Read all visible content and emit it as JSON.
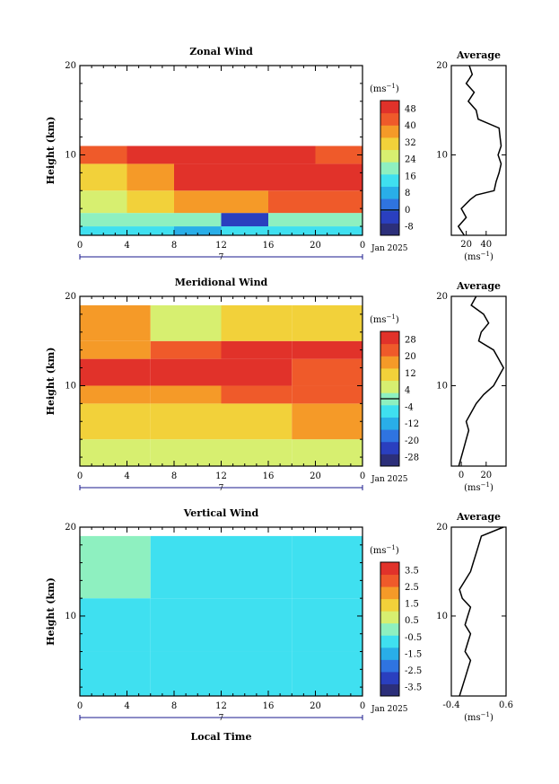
{
  "chart_data": [
    {
      "type": "heatmap",
      "title": "Zonal Wind",
      "ylabel": "Height (km)",
      "xlabel": "",
      "x_ticks": [
        "0",
        "4",
        "8",
        "12",
        "16",
        "20",
        "0"
      ],
      "y_ticks": [
        "10",
        "20"
      ],
      "xlim": [
        0,
        24
      ],
      "ylim": [
        1,
        20
      ],
      "date_marker": "7",
      "date_label": "Jan 2025",
      "colorbar": {
        "unit": "(ms",
        "unit_exp": "−1",
        "unit_close": ")",
        "ticks": [
          "48",
          "40",
          "32",
          "24",
          "16",
          "8",
          "0",
          "-8"
        ],
        "range": [
          -12,
          52
        ],
        "zero_value": 0
      },
      "average_profile": {
        "title": "Average",
        "x_ticks": [
          "20",
          "40"
        ],
        "xlim": [
          5,
          60
        ],
        "unit": "(ms",
        "unit_exp": "−1",
        "unit_close": ")",
        "heights": [
          1,
          2,
          3,
          4,
          5,
          5.5,
          6,
          7,
          8,
          9,
          10,
          11,
          12,
          13,
          14,
          15,
          16,
          17,
          18,
          19,
          20
        ],
        "values": [
          18,
          12,
          20,
          15,
          24,
          30,
          48,
          50,
          53,
          55,
          52,
          55,
          54,
          53,
          32,
          30,
          22,
          28,
          20,
          26,
          23
        ]
      },
      "field": [
        {
          "t": [
            0,
            4
          ],
          "h": [
            1,
            2
          ],
          "v": 12
        },
        {
          "t": [
            4,
            8
          ],
          "h": [
            1,
            2
          ],
          "v": 14
        },
        {
          "t": [
            8,
            12
          ],
          "h": [
            1,
            2
          ],
          "v": 10
        },
        {
          "t": [
            12,
            16
          ],
          "h": [
            1,
            2
          ],
          "v": 12
        },
        {
          "t": [
            16,
            20
          ],
          "h": [
            1,
            2
          ],
          "v": 14
        },
        {
          "t": [
            20,
            24
          ],
          "h": [
            1,
            2
          ],
          "v": 12
        },
        {
          "t": [
            0,
            4
          ],
          "h": [
            2,
            3.5
          ],
          "v": 20
        },
        {
          "t": [
            4,
            8
          ],
          "h": [
            2,
            3.5
          ],
          "v": 20
        },
        {
          "t": [
            8,
            12
          ],
          "h": [
            2,
            3.5
          ],
          "v": 18
        },
        {
          "t": [
            12,
            16
          ],
          "h": [
            2,
            3.5
          ],
          "v": -4
        },
        {
          "t": [
            16,
            20
          ],
          "h": [
            2,
            3.5
          ],
          "v": 20
        },
        {
          "t": [
            20,
            24
          ],
          "h": [
            2,
            3.5
          ],
          "v": 22
        },
        {
          "t": [
            0,
            4
          ],
          "h": [
            3.5,
            6
          ],
          "v": 26
        },
        {
          "t": [
            4,
            8
          ],
          "h": [
            3.5,
            6
          ],
          "v": 30
        },
        {
          "t": [
            8,
            12
          ],
          "h": [
            3.5,
            6
          ],
          "v": 40
        },
        {
          "t": [
            12,
            16
          ],
          "h": [
            3.5,
            6
          ],
          "v": 36
        },
        {
          "t": [
            16,
            20
          ],
          "h": [
            3.5,
            6
          ],
          "v": 44
        },
        {
          "t": [
            20,
            24
          ],
          "h": [
            3.5,
            6
          ],
          "v": 46
        },
        {
          "t": [
            0,
            4
          ],
          "h": [
            6,
            9
          ],
          "v": 34
        },
        {
          "t": [
            4,
            8
          ],
          "h": [
            6,
            9
          ],
          "v": 38
        },
        {
          "t": [
            8,
            12
          ],
          "h": [
            6,
            9
          ],
          "v": 48
        },
        {
          "t": [
            12,
            16
          ],
          "h": [
            6,
            9
          ],
          "v": 48
        },
        {
          "t": [
            16,
            20
          ],
          "h": [
            6,
            9
          ],
          "v": 50
        },
        {
          "t": [
            20,
            24
          ],
          "h": [
            6,
            9
          ],
          "v": 50
        },
        {
          "t": [
            0,
            4
          ],
          "h": [
            9,
            11
          ],
          "v": 46
        },
        {
          "t": [
            4,
            8
          ],
          "h": [
            9,
            11
          ],
          "v": 48
        },
        {
          "t": [
            8,
            12
          ],
          "h": [
            9,
            11
          ],
          "v": 50
        },
        {
          "t": [
            12,
            16
          ],
          "h": [
            9,
            11
          ],
          "v": 50
        },
        {
          "t": [
            16,
            20
          ],
          "h": [
            9,
            11
          ],
          "v": 48
        },
        {
          "t": [
            20,
            24
          ],
          "h": [
            9,
            11
          ],
          "v": 46
        }
      ]
    },
    {
      "type": "heatmap",
      "title": "Meridional Wind",
      "ylabel": "Height (km)",
      "xlabel": "",
      "x_ticks": [
        "0",
        "4",
        "8",
        "12",
        "16",
        "20",
        "0"
      ],
      "y_ticks": [
        "10",
        "20"
      ],
      "xlim": [
        0,
        24
      ],
      "ylim": [
        1,
        20
      ],
      "date_marker": "7",
      "date_label": "Jan 2025",
      "colorbar": {
        "unit": "(ms",
        "unit_exp": "−1",
        "unit_close": ")",
        "ticks": [
          "28",
          "20",
          "12",
          "4",
          "-4",
          "-12",
          "-20",
          "-28"
        ],
        "range": [
          -32,
          32
        ],
        "zero_value": 0
      },
      "average_profile": {
        "title": "Average",
        "x_ticks": [
          "0",
          "20"
        ],
        "xlim": [
          -8,
          36
        ],
        "unit": "(ms",
        "unit_exp": "−1",
        "unit_close": ")",
        "heights": [
          1,
          2,
          3,
          4,
          5,
          6,
          7,
          8,
          9,
          10,
          11,
          12,
          13,
          14,
          15,
          16,
          17,
          18,
          19,
          20
        ],
        "values": [
          -2,
          0,
          2,
          4,
          6,
          4,
          8,
          12,
          18,
          26,
          30,
          34,
          30,
          26,
          14,
          16,
          22,
          18,
          8,
          12
        ]
      },
      "field": [
        {
          "t": [
            0,
            6
          ],
          "h": [
            1,
            4
          ],
          "v": 4
        },
        {
          "t": [
            6,
            12
          ],
          "h": [
            1,
            4
          ],
          "v": 6
        },
        {
          "t": [
            12,
            18
          ],
          "h": [
            1,
            4
          ],
          "v": 8
        },
        {
          "t": [
            18,
            24
          ],
          "h": [
            1,
            4
          ],
          "v": 6
        },
        {
          "t": [
            0,
            6
          ],
          "h": [
            4,
            8
          ],
          "v": 10
        },
        {
          "t": [
            6,
            12
          ],
          "h": [
            4,
            8
          ],
          "v": 12
        },
        {
          "t": [
            12,
            18
          ],
          "h": [
            4,
            8
          ],
          "v": 14
        },
        {
          "t": [
            18,
            24
          ],
          "h": [
            4,
            8
          ],
          "v": 16
        },
        {
          "t": [
            0,
            6
          ],
          "h": [
            8,
            10
          ],
          "v": 18
        },
        {
          "t": [
            6,
            12
          ],
          "h": [
            8,
            10
          ],
          "v": 20
        },
        {
          "t": [
            12,
            18
          ],
          "h": [
            8,
            10
          ],
          "v": 22
        },
        {
          "t": [
            18,
            24
          ],
          "h": [
            8,
            10
          ],
          "v": 24
        },
        {
          "t": [
            0,
            6
          ],
          "h": [
            10,
            13
          ],
          "v": 30
        },
        {
          "t": [
            6,
            12
          ],
          "h": [
            10,
            13
          ],
          "v": 30
        },
        {
          "t": [
            12,
            18
          ],
          "h": [
            10,
            13
          ],
          "v": 28
        },
        {
          "t": [
            18,
            24
          ],
          "h": [
            10,
            13
          ],
          "v": 26
        },
        {
          "t": [
            0,
            6
          ],
          "h": [
            13,
            15
          ],
          "v": 20
        },
        {
          "t": [
            6,
            12
          ],
          "h": [
            13,
            15
          ],
          "v": 24
        },
        {
          "t": [
            12,
            18
          ],
          "h": [
            13,
            15
          ],
          "v": 28
        },
        {
          "t": [
            18,
            24
          ],
          "h": [
            13,
            15
          ],
          "v": 28
        },
        {
          "t": [
            0,
            6
          ],
          "h": [
            15,
            19
          ],
          "v": 16
        },
        {
          "t": [
            6,
            12
          ],
          "h": [
            15,
            19
          ],
          "v": 8
        },
        {
          "t": [
            12,
            18
          ],
          "h": [
            15,
            19
          ],
          "v": 12
        },
        {
          "t": [
            18,
            24
          ],
          "h": [
            15,
            19
          ],
          "v": 14
        }
      ]
    },
    {
      "type": "heatmap",
      "title": "Vertical Wind",
      "ylabel": "Height (km)",
      "xlabel": "Local Time",
      "x_ticks": [
        "0",
        "4",
        "8",
        "12",
        "16",
        "20",
        "0"
      ],
      "y_ticks": [
        "10",
        "20"
      ],
      "xlim": [
        0,
        24
      ],
      "ylim": [
        1,
        20
      ],
      "date_marker": "7",
      "date_label": "Jan 2025",
      "colorbar": {
        "unit": "(ms",
        "unit_exp": "−1",
        "unit_close": ")",
        "ticks": [
          "3.5",
          "2.5",
          "1.5",
          "0.5",
          "-0.5",
          "-1.5",
          "-2.5",
          "-3.5"
        ],
        "range": [
          -4,
          4
        ],
        "zero_value": null
      },
      "average_profile": {
        "title": "Average",
        "x_ticks": [
          "-0.4",
          "0.6"
        ],
        "xlim": [
          -0.4,
          0.6
        ],
        "unit": "(ms",
        "unit_exp": "−1",
        "unit_close": ")",
        "heights": [
          1,
          2,
          3,
          4,
          5,
          6,
          7,
          8,
          9,
          10,
          11,
          12,
          13,
          14,
          15,
          16,
          17,
          18,
          19,
          20
        ],
        "values": [
          -0.25,
          -0.2,
          -0.15,
          -0.1,
          -0.05,
          -0.15,
          -0.1,
          -0.05,
          -0.15,
          -0.1,
          -0.05,
          -0.2,
          -0.25,
          -0.15,
          -0.05,
          0.0,
          0.05,
          0.1,
          0.15,
          0.55
        ]
      },
      "field": [
        {
          "t": [
            0,
            6
          ],
          "h": [
            1,
            6
          ],
          "v": -0.6
        },
        {
          "t": [
            6,
            12
          ],
          "h": [
            1,
            6
          ],
          "v": -0.4
        },
        {
          "t": [
            12,
            18
          ],
          "h": [
            1,
            6
          ],
          "v": -0.8
        },
        {
          "t": [
            18,
            24
          ],
          "h": [
            1,
            6
          ],
          "v": -1.0
        },
        {
          "t": [
            0,
            6
          ],
          "h": [
            6,
            12
          ],
          "v": -0.4
        },
        {
          "t": [
            6,
            12
          ],
          "h": [
            6,
            12
          ],
          "v": -0.6
        },
        {
          "t": [
            12,
            18
          ],
          "h": [
            6,
            12
          ],
          "v": -0.8
        },
        {
          "t": [
            18,
            24
          ],
          "h": [
            6,
            12
          ],
          "v": -0.6
        },
        {
          "t": [
            0,
            6
          ],
          "h": [
            12,
            19
          ],
          "v": -0.2
        },
        {
          "t": [
            6,
            12
          ],
          "h": [
            12,
            19
          ],
          "v": -0.4
        },
        {
          "t": [
            12,
            18
          ],
          "h": [
            12,
            19
          ],
          "v": -0.6
        },
        {
          "t": [
            18,
            24
          ],
          "h": [
            12,
            19
          ],
          "v": -0.4
        }
      ]
    }
  ],
  "palette": [
    "#2c2f7a",
    "#2a3fbf",
    "#2f74e0",
    "#29aee8",
    "#3fe0f0",
    "#8ef0c0",
    "#d7ef70",
    "#f2d13a",
    "#f59a28",
    "#ef5a2a",
    "#e1322a"
  ]
}
